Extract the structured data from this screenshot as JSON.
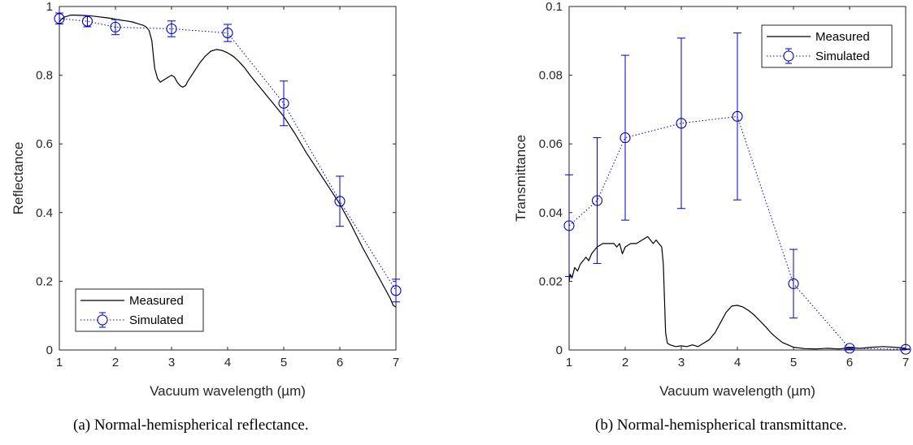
{
  "colors": {
    "measured": "#000000",
    "simulated": "#0000c8",
    "axis": "#262626"
  },
  "chart_data": [
    {
      "type": "line",
      "title": "",
      "caption": "(a) Normal-hemispherical reflectance.",
      "xlabel": "Vacuum wavelength (µm)",
      "ylabel": "Reflectance",
      "xlim": [
        1,
        7
      ],
      "ylim": [
        0,
        1
      ],
      "xticks": [
        1,
        2,
        3,
        4,
        5,
        6,
        7
      ],
      "yticks": [
        0,
        0.2,
        0.4,
        0.6,
        0.8,
        1
      ],
      "yticklabels": [
        "0",
        "0.2",
        "0.4",
        "0.6",
        "0.8",
        "1"
      ],
      "grid": false,
      "legend": {
        "position": "bottom-left",
        "entries": [
          "Measured",
          "Simulated"
        ]
      },
      "series": [
        {
          "name": "Measured",
          "style": "solid",
          "x": [
            1.0,
            1.05,
            1.1,
            1.15,
            1.2,
            1.3,
            1.4,
            1.5,
            1.6,
            1.7,
            1.8,
            1.9,
            2.0,
            2.1,
            2.2,
            2.3,
            2.4,
            2.5,
            2.55,
            2.6,
            2.65,
            2.68,
            2.7,
            2.75,
            2.8,
            2.9,
            3.0,
            3.05,
            3.1,
            3.15,
            3.2,
            3.25,
            3.3,
            3.4,
            3.5,
            3.6,
            3.7,
            3.8,
            3.9,
            4.0,
            4.1,
            4.2,
            4.3,
            4.4,
            4.5,
            4.6,
            4.7,
            4.8,
            4.9,
            5.0,
            5.2,
            5.4,
            5.6,
            5.8,
            6.0,
            6.2,
            6.4,
            6.6,
            6.8,
            6.9,
            6.95,
            7.0
          ],
          "y": [
            0.955,
            0.965,
            0.97,
            0.972,
            0.975,
            0.975,
            0.974,
            0.973,
            0.972,
            0.97,
            0.968,
            0.966,
            0.963,
            0.96,
            0.958,
            0.955,
            0.95,
            0.945,
            0.94,
            0.93,
            0.9,
            0.85,
            0.82,
            0.79,
            0.78,
            0.79,
            0.8,
            0.795,
            0.78,
            0.77,
            0.765,
            0.77,
            0.785,
            0.81,
            0.835,
            0.855,
            0.87,
            0.875,
            0.872,
            0.865,
            0.855,
            0.84,
            0.822,
            0.8,
            0.78,
            0.76,
            0.74,
            0.72,
            0.7,
            0.68,
            0.63,
            0.575,
            0.525,
            0.475,
            0.425,
            0.365,
            0.3,
            0.24,
            0.18,
            0.15,
            0.13,
            0.125
          ]
        },
        {
          "name": "Simulated",
          "style": "dotted-circles",
          "x": [
            1,
            1.5,
            2,
            3,
            4,
            5,
            6,
            7
          ],
          "y": [
            0.965,
            0.957,
            0.94,
            0.935,
            0.923,
            0.718,
            0.433,
            0.173
          ],
          "err": [
            0.016,
            0.016,
            0.022,
            0.023,
            0.025,
            0.065,
            0.073,
            0.033
          ]
        }
      ]
    },
    {
      "type": "line",
      "title": "",
      "caption": "(b) Normal-hemispherical transmittance.",
      "xlabel": "Vacuum wavelength (µm)",
      "ylabel": "Transmittance",
      "xlim": [
        1,
        7
      ],
      "ylim": [
        0,
        0.1
      ],
      "xticks": [
        1,
        2,
        3,
        4,
        5,
        6,
        7
      ],
      "yticks": [
        0,
        0.02,
        0.04,
        0.06,
        0.08,
        0.1
      ],
      "yticklabels": [
        "0",
        "0.02",
        "0.04",
        "0.06",
        "0.08",
        "0.1"
      ],
      "grid": false,
      "legend": {
        "position": "top-right",
        "entries": [
          "Measured",
          "Simulated"
        ]
      },
      "series": [
        {
          "name": "Measured",
          "style": "solid",
          "x": [
            1.0,
            1.02,
            1.05,
            1.1,
            1.15,
            1.2,
            1.25,
            1.3,
            1.35,
            1.4,
            1.45,
            1.5,
            1.6,
            1.7,
            1.8,
            1.85,
            1.9,
            1.95,
            2.0,
            2.1,
            2.2,
            2.3,
            2.4,
            2.5,
            2.55,
            2.6,
            2.65,
            2.68,
            2.7,
            2.72,
            2.75,
            2.8,
            2.9,
            3.0,
            3.1,
            3.2,
            3.3,
            3.4,
            3.5,
            3.6,
            3.7,
            3.8,
            3.9,
            4.0,
            4.1,
            4.2,
            4.3,
            4.4,
            4.5,
            4.6,
            4.7,
            4.8,
            5.0,
            5.2,
            5.4,
            5.6,
            5.8,
            6.0,
            6.2,
            6.4,
            6.6,
            6.8,
            7.0
          ],
          "y": [
            0.02,
            0.022,
            0.021,
            0.024,
            0.023,
            0.025,
            0.026,
            0.027,
            0.026,
            0.028,
            0.029,
            0.03,
            0.031,
            0.031,
            0.031,
            0.03,
            0.031,
            0.028,
            0.03,
            0.031,
            0.031,
            0.032,
            0.033,
            0.031,
            0.032,
            0.031,
            0.03,
            0.025,
            0.015,
            0.005,
            0.002,
            0.0015,
            0.001,
            0.0012,
            0.001,
            0.0015,
            0.001,
            0.002,
            0.003,
            0.005,
            0.008,
            0.011,
            0.0128,
            0.013,
            0.0125,
            0.0115,
            0.0102,
            0.0085,
            0.0068,
            0.005,
            0.0035,
            0.0022,
            0.0008,
            0.0004,
            0.0003,
            0.0005,
            0.0003,
            0.0006,
            0.0005,
            0.0008,
            0.001,
            0.0008,
            0.0005
          ]
        },
        {
          "name": "Simulated",
          "style": "dotted-circles",
          "x": [
            1,
            1.5,
            2,
            3,
            4,
            5,
            6,
            7
          ],
          "y": [
            0.0362,
            0.0435,
            0.0618,
            0.066,
            0.068,
            0.0193,
            0.0005,
            0.0002
          ],
          "err": [
            0.0148,
            0.0183,
            0.024,
            0.0248,
            0.0243,
            0.01,
            0.0003,
            0.0001
          ]
        }
      ]
    }
  ]
}
